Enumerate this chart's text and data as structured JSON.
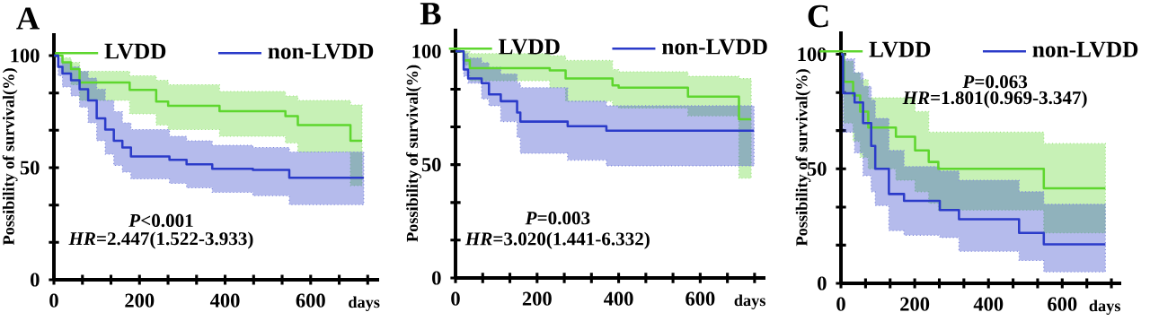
{
  "chart_data": [
    {
      "type": "step",
      "title": "A",
      "xlabel": "days",
      "ylabel": "Possibility of survival(%)",
      "legend": "top",
      "xlim": [
        0,
        760
      ],
      "ylim": [
        0,
        110
      ],
      "xticks": [
        0,
        {
          "value": 66.7,
          "label": null
        },
        {
          "value": 133.3,
          "label": null
        },
        200,
        {
          "value": 266.7,
          "label": null
        },
        {
          "value": 333.3,
          "label": null
        },
        400,
        {
          "value": 466.7,
          "label": null
        },
        {
          "value": 533.3,
          "label": null
        },
        600,
        {
          "value": 666.7,
          "label": null
        },
        {
          "value": 733.3,
          "label": null
        }
      ],
      "yticks": [
        0,
        {
          "value": 16.7,
          "label": null
        },
        {
          "value": 33.3,
          "label": null
        },
        50,
        {
          "value": 66.7,
          "label": null
        },
        {
          "value": 83.3,
          "label": null
        },
        100
      ],
      "annotations": [
        "*P*<0.001",
        "*HR*=2.447(1.522-3.933)"
      ],
      "series": [
        {
          "name": "LVDD",
          "color": "#5ed62e",
          "x": [
            0,
            20,
            40,
            60,
            177,
            239,
            267,
            387,
            541,
            570,
            693,
            720
          ],
          "values": [
            100,
            97,
            94,
            88,
            84.7,
            79.5,
            77.6,
            75.2,
            73,
            69,
            62,
            62
          ],
          "upper": [
            100,
            99,
            97,
            93,
            91,
            89,
            87,
            84,
            82,
            80,
            78,
            78
          ],
          "lower": [
            100,
            92,
            87,
            80,
            74,
            69,
            67,
            64,
            61,
            57,
            42,
            42
          ]
        },
        {
          "name": "non-LVDD",
          "color": "#2b3bc9",
          "x": [
            0,
            10,
            20,
            40,
            60,
            80,
            100,
            120,
            140,
            160,
            180,
            270,
            310,
            370,
            465,
            550,
            724
          ],
          "values": [
            100,
            95,
            92,
            89,
            85,
            80,
            72,
            67,
            62,
            59,
            55,
            53.5,
            51.5,
            49.5,
            49,
            45.5,
            45.5
          ],
          "upper": [
            100,
            99,
            97,
            95,
            93,
            90,
            85,
            80,
            75,
            70,
            67,
            64,
            62,
            60,
            59,
            57,
            57
          ],
          "lower": [
            100,
            91,
            86,
            82,
            77,
            70,
            62,
            56,
            51,
            48,
            45,
            43,
            41,
            39,
            37.5,
            33.5,
            33.5
          ]
        }
      ]
    },
    {
      "type": "step",
      "title": "B",
      "xlabel": "days",
      "ylabel": "Possibility of survival(%)",
      "legend": "top",
      "xlim": [
        0,
        760
      ],
      "ylim": [
        0,
        110
      ],
      "xticks": [
        0,
        {
          "value": 66.7,
          "label": null
        },
        {
          "value": 133.3,
          "label": null
        },
        200,
        {
          "value": 266.7,
          "label": null
        },
        {
          "value": 333.3,
          "label": null
        },
        400,
        {
          "value": 466.7,
          "label": null
        },
        {
          "value": 533.3,
          "label": null
        },
        600,
        {
          "value": 666.7,
          "label": null
        },
        {
          "value": 733.3,
          "label": null
        }
      ],
      "yticks": [
        0,
        {
          "value": 16.7,
          "label": null
        },
        {
          "value": 33.3,
          "label": null
        },
        50,
        {
          "value": 66.7,
          "label": null
        },
        {
          "value": 83.3,
          "label": null
        },
        100
      ],
      "annotations": [
        "*P*=0.003",
        "*HR*=3.020(1.441-6.332)"
      ],
      "series": [
        {
          "name": "LVDD",
          "color": "#5ed62e",
          "x": [
            0,
            20,
            35,
            231,
            270,
            385,
            400,
            570,
            695,
            725
          ],
          "values": [
            100,
            96,
            92.6,
            91.6,
            88,
            85,
            84,
            80,
            70,
            70
          ],
          "upper": [
            100,
            100,
            99,
            98,
            96,
            92,
            91,
            89,
            88,
            88
          ],
          "lower": [
            100,
            94,
            87,
            84,
            78,
            76,
            75,
            71.5,
            44,
            44
          ]
        },
        {
          "name": "non-LVDD",
          "color": "#2b3bc9",
          "x": [
            0,
            20,
            31,
            64,
            82,
            111,
            151,
            159,
            275,
            370,
            732
          ],
          "values": [
            100,
            92,
            88,
            86,
            81,
            78,
            73,
            69,
            67,
            65,
            65
          ],
          "upper": [
            100,
            99,
            97,
            95,
            93,
            90,
            86,
            84,
            78,
            76,
            76
          ],
          "lower": [
            100,
            89,
            86,
            79,
            76,
            69,
            62,
            55,
            52,
            49.5,
            49.5
          ]
        }
      ]
    },
    {
      "type": "step",
      "title": "C",
      "xlabel": "days",
      "ylabel": "Possibility of survival(%)",
      "legend": "top",
      "xlim": [
        0,
        760
      ],
      "ylim": [
        0,
        110
      ],
      "xticks": [
        0,
        {
          "value": 66.7,
          "label": null
        },
        {
          "value": 133.3,
          "label": null
        },
        200,
        {
          "value": 266.7,
          "label": null
        },
        {
          "value": 333.3,
          "label": null
        },
        400,
        {
          "value": 466.7,
          "label": null
        },
        {
          "value": 533.3,
          "label": null
        },
        600,
        {
          "value": 666.7,
          "label": null
        },
        {
          "value": 733.3,
          "label": null
        }
      ],
      "yticks": [
        0,
        {
          "value": 16.7,
          "label": null
        },
        {
          "value": 33.3,
          "label": null
        },
        50,
        {
          "value": 66.7,
          "label": null
        },
        {
          "value": 83.3,
          "label": null
        },
        100
      ],
      "annotations": [
        "*P*=0.063",
        "*HR*=1.801(0.969-3.347)"
      ],
      "series": [
        {
          "name": "LVDD",
          "color": "#5ed62e",
          "x": [
            0,
            8,
            33,
            52,
            74,
            149,
            201,
            238,
            264,
            550,
            717
          ],
          "values": [
            100,
            88,
            82,
            75,
            68,
            64,
            58,
            53,
            50,
            41.5,
            41.5
          ],
          "upper": [
            100,
            97,
            92,
            89,
            81,
            81,
            75,
            66,
            66,
            61,
            61
          ],
          "lower": [
            100,
            70,
            62,
            55,
            50,
            45,
            40,
            35,
            32,
            22,
            22
          ]
        },
        {
          "name": "non-LVDD",
          "color": "#2b3bc9",
          "x": [
            0,
            6,
            37,
            60,
            82,
            93,
            130,
            171,
            268,
            320,
            483,
            550,
            717
          ],
          "values": [
            100,
            83,
            79,
            70,
            60,
            50,
            39,
            36,
            32,
            28,
            22,
            17,
            17
          ],
          "upper": [
            100,
            98,
            92,
            86,
            80,
            72,
            58,
            51,
            49,
            45,
            40,
            34.5,
            34.5
          ],
          "lower": [
            100,
            66,
            57,
            47,
            40,
            34,
            23,
            21,
            20,
            14,
            10,
            5,
            5
          ]
        }
      ]
    }
  ]
}
